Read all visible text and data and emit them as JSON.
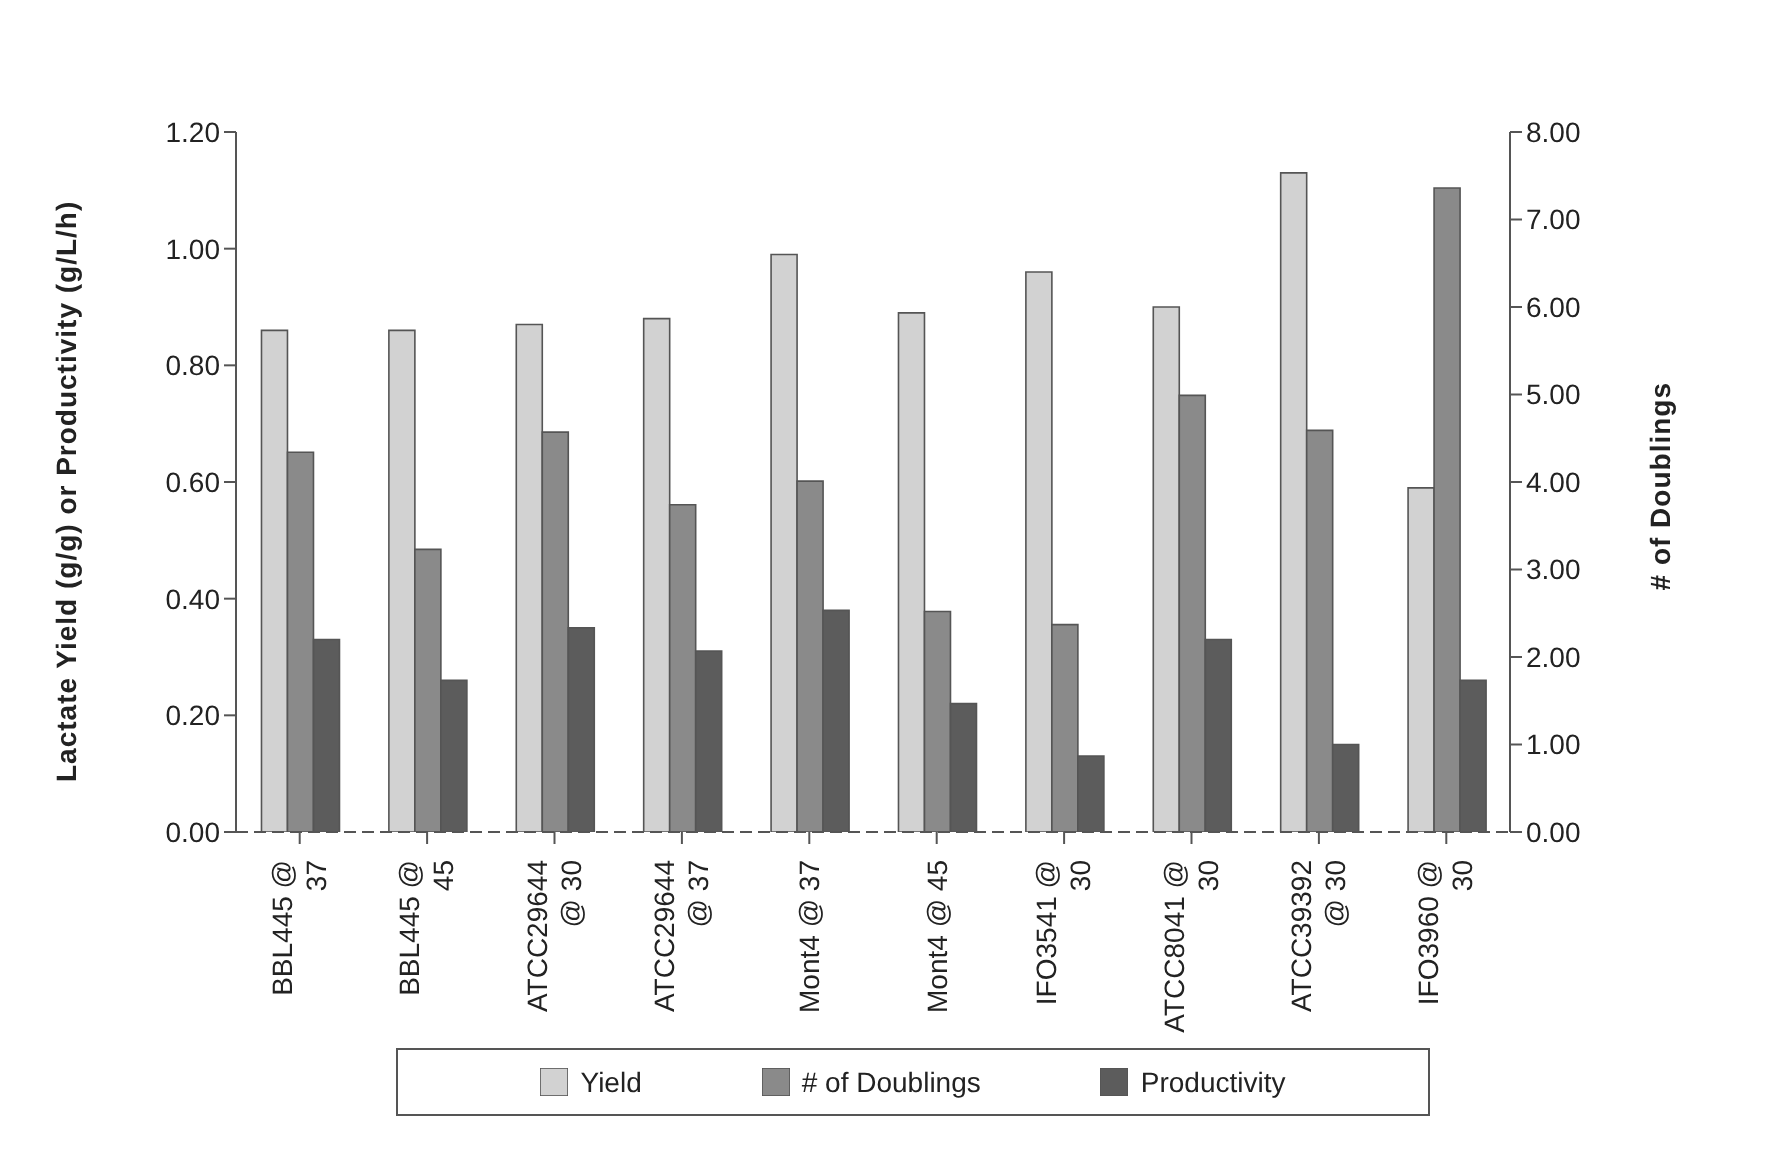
{
  "chart_data": {
    "type": "bar",
    "ylabel": "Lactate Yield (g/g) or Productivity (g/L/h)",
    "y2label": "# of Doublings",
    "categories": [
      "BBL445 @ 37",
      "BBL445 @ 45",
      "ATCC29644 @ 30",
      "ATCC29644 @ 37",
      "Mont4 @ 37",
      "Mont4 @ 45",
      "IFO3541 @ 30",
      "ATCC8041 @ 30",
      "ATCC39392 @ 30",
      "IFO3960 @ 30"
    ],
    "series": [
      {
        "name": "Yield",
        "color": "#d2d2d2",
        "values": [
          0.86,
          0.86,
          0.87,
          0.88,
          0.99,
          0.89,
          0.96,
          0.9,
          1.13,
          0.59
        ]
      },
      {
        "name": "# of Doublings",
        "color": "#8a8a8a",
        "axis": "y2",
        "values": [
          4.34,
          3.23,
          4.57,
          3.74,
          4.01,
          2.52,
          2.37,
          4.99,
          4.59,
          7.36
        ]
      },
      {
        "name": "Productivity",
        "color": "#5c5c5c",
        "values": [
          0.33,
          0.26,
          0.35,
          0.31,
          0.38,
          0.22,
          0.13,
          0.33,
          0.15,
          0.26
        ]
      }
    ],
    "ylim": [
      0,
      1.2
    ],
    "yticks": [
      {
        "value": 0,
        "label": "0.00"
      },
      {
        "value": 0.2,
        "label": "0.20"
      },
      {
        "value": 0.4,
        "label": "0.40"
      },
      {
        "value": 0.6,
        "label": "0.60"
      },
      {
        "value": 0.8,
        "label": "0.80"
      },
      {
        "value": 1,
        "label": "1.00"
      },
      {
        "value": 1.2,
        "label": "1.20"
      }
    ],
    "y2lim": [
      0,
      8
    ],
    "y2ticks": [
      {
        "value": 0,
        "label": "0.00"
      },
      {
        "value": 1,
        "label": "1.00"
      },
      {
        "value": 2,
        "label": "2.00"
      },
      {
        "value": 3,
        "label": "3.00"
      },
      {
        "value": 4,
        "label": "4.00"
      },
      {
        "value": 5,
        "label": "5.00"
      },
      {
        "value": 6,
        "label": "6.00"
      },
      {
        "value": 7,
        "label": "7.00"
      },
      {
        "value": 8,
        "label": "8.00"
      }
    ],
    "grid": false,
    "legend": "bottom"
  }
}
